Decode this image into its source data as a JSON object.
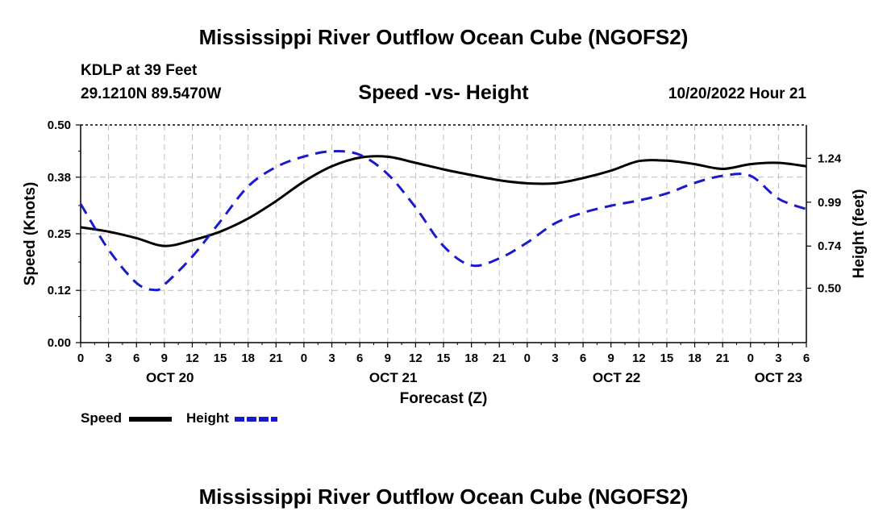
{
  "page": {
    "title_top": "Mississippi River Outflow Ocean Cube (NGOFS2)",
    "title_bottom": "Mississippi River Outflow Ocean Cube (NGOFS2)",
    "station": "KDLP at 39 Feet",
    "coords": "29.1210N  89.5470W",
    "subtitle": "Speed -vs- Height",
    "datetime": "10/20/2022 Hour 21"
  },
  "legend": {
    "speed_label": "Speed",
    "height_label": "Height"
  },
  "colors": {
    "speed": "#000000",
    "height": "#1a1acc",
    "grid": "#bdbdbd"
  },
  "chart_data": {
    "type": "line",
    "title": "Speed -vs- Height",
    "xlabel": "Forecast (Z)",
    "ylabel": "Speed (Knots)",
    "y2label": "Height (feet)",
    "xlim": [
      0,
      78
    ],
    "ylim": [
      0.0,
      0.5
    ],
    "y2lim": [
      0.19,
      1.43
    ],
    "x_ticks": [
      0,
      3,
      6,
      9,
      12,
      15,
      18,
      21,
      24,
      27,
      30,
      33,
      36,
      39,
      42,
      45,
      48,
      51,
      54,
      57,
      60,
      63,
      66,
      69,
      72,
      75,
      78
    ],
    "x_tick_labels": [
      "0",
      "3",
      "6",
      "9",
      "12",
      "15",
      "18",
      "21",
      "0",
      "3",
      "6",
      "9",
      "12",
      "15",
      "18",
      "21",
      "0",
      "3",
      "6",
      "9",
      "12",
      "15",
      "18",
      "21",
      "0",
      "3",
      "6"
    ],
    "day_labels": [
      {
        "x": 9.6,
        "label": "OCT 20"
      },
      {
        "x": 33.6,
        "label": "OCT 21"
      },
      {
        "x": 57.6,
        "label": "OCT 22"
      },
      {
        "x": 75.0,
        "label": "OCT 23"
      }
    ],
    "y_ticks": [
      0.0,
      0.12,
      0.25,
      0.38,
      0.5
    ],
    "y_tick_labels": [
      "0.00",
      "0.12",
      "0.25",
      "0.38",
      "0.50"
    ],
    "y2_ticks": [
      0.5,
      0.74,
      0.99,
      1.24
    ],
    "y2_tick_labels": [
      "0.50",
      "0.74",
      "0.99",
      "1.24"
    ],
    "grid": true,
    "series": [
      {
        "name": "Speed",
        "axis": "left",
        "style": "solid",
        "x": [
          0,
          3,
          6,
          9,
          12,
          15,
          18,
          21,
          24,
          27,
          30,
          33,
          36,
          39,
          42,
          45,
          48,
          51,
          54,
          57,
          60,
          63,
          66,
          69,
          72,
          75,
          78
        ],
        "values": [
          0.265,
          0.255,
          0.24,
          0.222,
          0.235,
          0.255,
          0.285,
          0.325,
          0.37,
          0.405,
          0.425,
          0.427,
          0.413,
          0.398,
          0.385,
          0.373,
          0.366,
          0.366,
          0.378,
          0.395,
          0.417,
          0.418,
          0.41,
          0.399,
          0.41,
          0.413,
          0.405
        ]
      },
      {
        "name": "Height",
        "axis": "right",
        "style": "dashed",
        "x": [
          0,
          3,
          6,
          8,
          9,
          12,
          15,
          18,
          21,
          24,
          27,
          30,
          33,
          36,
          39,
          42,
          45,
          48,
          51,
          54,
          57,
          60,
          63,
          66,
          69,
          72,
          75,
          78
        ],
        "values": [
          0.98,
          0.72,
          0.53,
          0.49,
          0.52,
          0.68,
          0.88,
          1.08,
          1.19,
          1.25,
          1.28,
          1.26,
          1.15,
          0.96,
          0.74,
          0.63,
          0.67,
          0.76,
          0.87,
          0.93,
          0.97,
          1.0,
          1.04,
          1.1,
          1.14,
          1.14,
          1.01,
          0.95
        ]
      }
    ]
  }
}
